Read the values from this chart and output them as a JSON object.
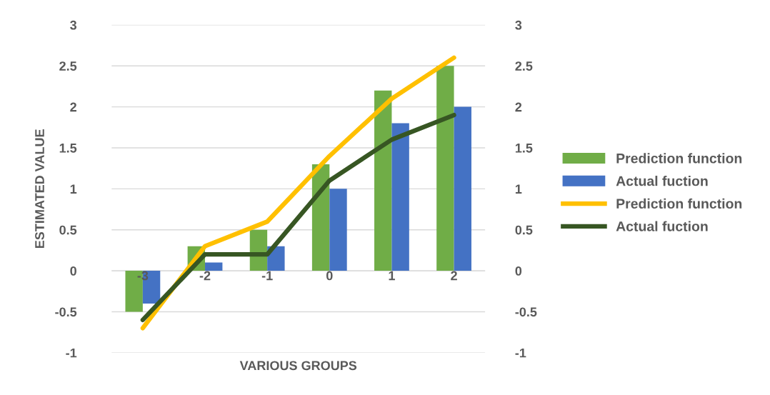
{
  "chart_data": {
    "type": "bar",
    "xlabel": "VARIOUS GROUPS",
    "ylabel": "ESTIMATED VALUE",
    "categories": [
      "-3",
      "-2",
      "-1",
      "0",
      "1",
      "2"
    ],
    "series": [
      {
        "name": "Prediction function",
        "color": "#70ad47",
        "values": [
          -0.5,
          0.3,
          0.5,
          1.3,
          2.2,
          2.5
        ]
      },
      {
        "name": "Actual fuction",
        "color": "#4472c4",
        "values": [
          -0.4,
          0.1,
          0.3,
          1.0,
          1.8,
          2.0
        ]
      },
      {
        "name": "Prediction function",
        "type": "line",
        "color": "#ffc000",
        "values": [
          -0.7,
          0.3,
          0.6,
          1.4,
          2.1,
          2.6
        ]
      },
      {
        "name": "Actual fuction",
        "type": "line",
        "color": "#375623",
        "values": [
          -0.6,
          0.2,
          0.2,
          1.1,
          1.6,
          1.9
        ]
      }
    ],
    "ylim": [
      -1,
      3
    ],
    "yticks": [
      -1,
      -0.5,
      0,
      0.5,
      1,
      1.5,
      2,
      2.5,
      3
    ],
    "y2lim": [
      -1,
      3
    ],
    "y2ticks": [
      -1,
      -0.5,
      0,
      0.5,
      1,
      1.5,
      2,
      2.5,
      3
    ],
    "grid": "y",
    "legend": "right"
  }
}
